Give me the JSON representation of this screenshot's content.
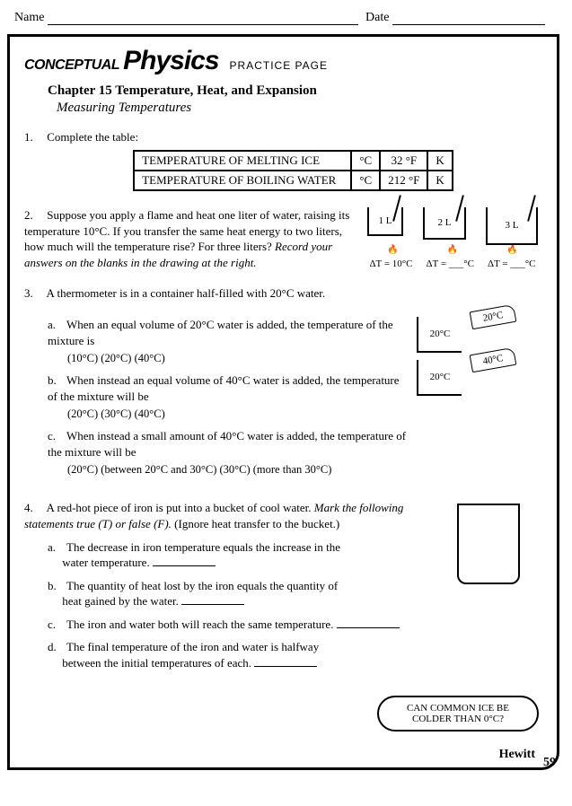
{
  "header": {
    "name_label": "Name",
    "date_label": "Date"
  },
  "brand": {
    "conceptual": "CONCEPTUAL",
    "physics": "Physics",
    "subtitle": "PRACTICE PAGE"
  },
  "chapter": "Chapter 15 Temperature, Heat, and Expansion",
  "subtitle": "Measuring Temperatures",
  "q1": {
    "num": "1.",
    "text": "Complete the table:",
    "table": {
      "rows": [
        {
          "label": "TEMPERATURE OF MELTING ICE",
          "c": "°C",
          "f": "32 °F",
          "k": "K"
        },
        {
          "label": "TEMPERATURE OF BOILING WATER",
          "c": "°C",
          "f": "212 °F",
          "k": "K"
        }
      ]
    }
  },
  "q2": {
    "num": "2.",
    "text": "Suppose you apply a flame and heat one liter of water, raising its temperature 10°C. If you transfer the same heat energy to two liters, how much will the temperature rise? For three liters? ",
    "italic": "Record your answers on the blanks in the drawing at the right.",
    "labels": {
      "b1": "1 L",
      "b2": "2 L",
      "b3": "3 L"
    },
    "dt": {
      "d1": "ΔT = 10°C",
      "d2": "ΔT = ___°C",
      "d3": "ΔT = ___°C"
    }
  },
  "q3": {
    "num": "3.",
    "intro": "A thermometer is in a container half-filled with 20°C water.",
    "a": {
      "letter": "a.",
      "text": "When an equal volume of 20°C water is added, the temperature of the mixture is",
      "choices": "(10°C)  (20°C)  (40°C)"
    },
    "b": {
      "letter": "b.",
      "text": "When instead an equal volume of 40°C water is added, the temperature of the mixture will be",
      "choices": "(20°C)  (30°C)  (40°C)"
    },
    "c": {
      "letter": "c.",
      "text": "When instead a small amount of 40°C water is added, the temperature of the mixture will be",
      "choices": "(20°C)  (between 20°C and 30°C)  (30°C)  (more than 30°C)"
    },
    "fig": {
      "t20": "20°C",
      "t40": "40°C"
    }
  },
  "q4": {
    "num": "4.",
    "intro_plain": "A red-hot piece of iron is put into a bucket of cool water. ",
    "intro_italic": "Mark the following statements true (T) or false (F).",
    "intro_tail": " (Ignore heat transfer to the bucket.)",
    "a": {
      "letter": "a.",
      "text1": "The decrease in iron temperature equals the increase in the",
      "text2": "water temperature."
    },
    "b": {
      "letter": "b.",
      "text1": "The quantity of heat lost by the iron equals the quantity of",
      "text2": "heat gained by the water."
    },
    "c": {
      "letter": "c.",
      "text": "The iron and water both will reach the same temperature."
    },
    "d": {
      "letter": "d.",
      "text1": "The final temperature of the iron and water is halfway",
      "text2": "between the initial temperatures of each."
    }
  },
  "bubble": "CAN COMMON ICE BE COLDER THAN 0°C?",
  "signature": "Hewitt",
  "pagenum": "59"
}
